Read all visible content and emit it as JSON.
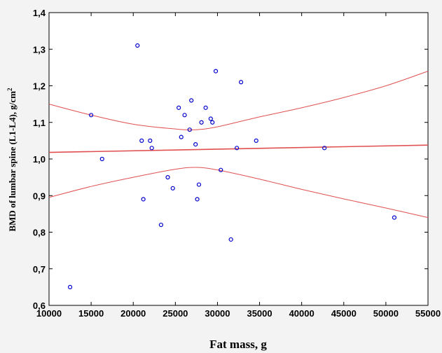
{
  "chart_data": {
    "type": "scatter",
    "xlabel": "Fat mass, g",
    "ylabel": "BMD of lumbar spine (L1-L4), g/cm",
    "ylabel_sup": "2",
    "xlim": [
      10000,
      55000
    ],
    "ylim": [
      0.6,
      1.4
    ],
    "grid": false,
    "x_ticks": [
      "10000",
      "15000",
      "20000",
      "25000",
      "30000",
      "35000",
      "40000",
      "45000",
      "50000",
      "55000"
    ],
    "y_ticks": [
      "0,6",
      "0,7",
      "0,8",
      "0,9",
      "1,0",
      "1,1",
      "1,2",
      "1,3",
      "1,4"
    ],
    "points": [
      {
        "x": 12500,
        "y": 0.65
      },
      {
        "x": 15000,
        "y": 1.12
      },
      {
        "x": 16300,
        "y": 1.0
      },
      {
        "x": 20500,
        "y": 1.31
      },
      {
        "x": 21000,
        "y": 1.05
      },
      {
        "x": 21200,
        "y": 0.89
      },
      {
        "x": 22000,
        "y": 1.05
      },
      {
        "x": 22200,
        "y": 1.03
      },
      {
        "x": 23300,
        "y": 0.82
      },
      {
        "x": 24100,
        "y": 0.95
      },
      {
        "x": 24700,
        "y": 0.92
      },
      {
        "x": 25400,
        "y": 1.14
      },
      {
        "x": 25700,
        "y": 1.06
      },
      {
        "x": 26100,
        "y": 1.12
      },
      {
        "x": 26700,
        "y": 1.08
      },
      {
        "x": 26900,
        "y": 1.16
      },
      {
        "x": 27400,
        "y": 1.04
      },
      {
        "x": 27600,
        "y": 0.89
      },
      {
        "x": 27800,
        "y": 0.93
      },
      {
        "x": 28100,
        "y": 1.1
      },
      {
        "x": 28600,
        "y": 1.14
      },
      {
        "x": 29200,
        "y": 1.11
      },
      {
        "x": 29400,
        "y": 1.1
      },
      {
        "x": 29800,
        "y": 1.24
      },
      {
        "x": 30400,
        "y": 0.97
      },
      {
        "x": 31600,
        "y": 0.78
      },
      {
        "x": 32300,
        "y": 1.03
      },
      {
        "x": 32800,
        "y": 1.21
      },
      {
        "x": 34600,
        "y": 1.05
      },
      {
        "x": 42700,
        "y": 1.03
      },
      {
        "x": 51000,
        "y": 0.84
      }
    ],
    "regression": {
      "x": [
        10000,
        55000
      ],
      "y": [
        1.018,
        1.038
      ]
    },
    "ci_upper": {
      "x": [
        10000,
        15000,
        20000,
        25000,
        27500,
        30000,
        35000,
        40000,
        45000,
        50000,
        55000
      ],
      "y": [
        1.15,
        1.12,
        1.095,
        1.082,
        1.08,
        1.088,
        1.115,
        1.14,
        1.168,
        1.2,
        1.24
      ]
    },
    "ci_lower": {
      "x": [
        10000,
        15000,
        20000,
        25000,
        27500,
        30000,
        35000,
        40000,
        45000,
        50000,
        55000
      ],
      "y": [
        0.895,
        0.925,
        0.95,
        0.972,
        0.977,
        0.97,
        0.945,
        0.917,
        0.891,
        0.866,
        0.84
      ]
    },
    "colors": {
      "points": "#0000cc",
      "lines": "#e05050",
      "frame": "#000000"
    }
  }
}
